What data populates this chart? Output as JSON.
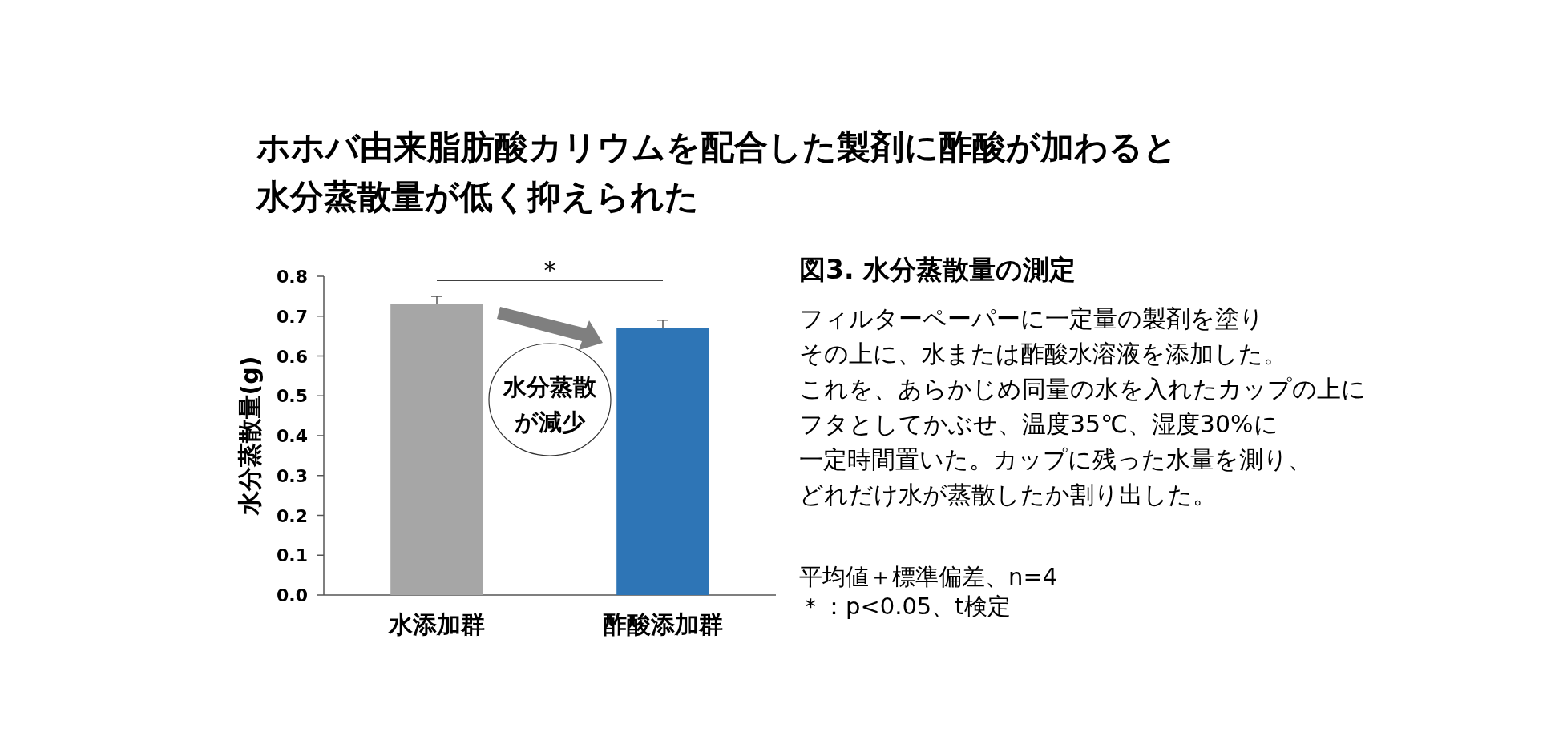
{
  "chart_data": {
    "type": "bar",
    "title": "ホホバ由来脂肪酸カリウムを配合した製剤に酢酸が加わると水分蒸散量が低く抑えられた",
    "subtitle": "図3. 水分蒸散量の測定",
    "ylabel": "水分蒸散量(g)",
    "categories": [
      "水添加群",
      "酢酸添加群"
    ],
    "values": [
      0.73,
      0.67
    ],
    "colors": [
      "#a6a6a6",
      "#2e75b6"
    ],
    "errors": [
      [
        0.73,
        0.75
      ],
      [
        0.67,
        0.69
      ]
    ],
    "ylim": [
      0,
      0.8
    ],
    "yticks": [
      {
        "value": 0,
        "label": "0.0"
      },
      {
        "value": 0.1,
        "label": "0.1"
      },
      {
        "value": 0.2,
        "label": "0.2"
      },
      {
        "value": 0.3,
        "label": "0.3"
      },
      {
        "value": 0.4,
        "label": "0.4"
      },
      {
        "value": 0.5,
        "label": "0.5"
      },
      {
        "value": 0.6,
        "label": "0.6"
      },
      {
        "value": 0.7,
        "label": "0.7"
      },
      {
        "value": 0.8,
        "label": "0.8"
      }
    ],
    "grid": false,
    "annotations": [
      "*",
      "水分蒸散が減少",
      "フィルターペーパーに一定量の製剤を塗り",
      "その上に、水または酢酸水溶液を添加した。",
      "これを、あらかじめ同量の水を入れたカップの上に",
      "フタとしてかぶせ、温度35℃、湿度30%に",
      "一定時間置いた。カップに残った水量を測り、",
      "どれだけ水が蒸散したか割り出した。",
      "平均値＋標準偏差、n=4",
      "＊：p<0.05、t検定"
    ]
  }
}
